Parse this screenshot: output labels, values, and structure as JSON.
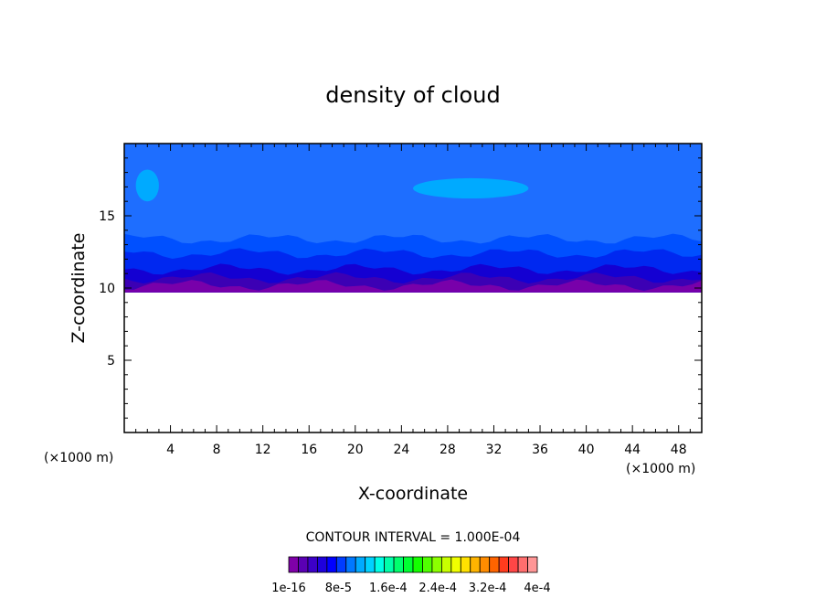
{
  "chart_data": {
    "type": "contour",
    "title": "density of cloud",
    "xlabel": "X-coordinate",
    "ylabel": "Z-coordinate",
    "x_unit_left": "(×1000 m)",
    "x_unit_right": "(×1000 m)",
    "xlim": [
      0,
      50
    ],
    "ylim": [
      0,
      20
    ],
    "x_ticks": [
      4,
      8,
      12,
      16,
      20,
      24,
      28,
      32,
      36,
      40,
      44,
      48
    ],
    "y_ticks": [
      5,
      10,
      15
    ],
    "contour_interval_text": "CONTOUR INTERVAL = 1.000E-04",
    "colorbar": {
      "colors": [
        "#7f00a8",
        "#5a00b4",
        "#3c00c8",
        "#1e00dc",
        "#0000ff",
        "#003cff",
        "#0078ff",
        "#00aaff",
        "#00d2ff",
        "#00ffe6",
        "#00ffaa",
        "#00ff6e",
        "#00ff32",
        "#14ff00",
        "#50ff00",
        "#8cff00",
        "#c8ff00",
        "#f0ff00",
        "#ffe100",
        "#ffb400",
        "#ff8c00",
        "#ff6400",
        "#ff3c1e",
        "#ff4646",
        "#ff6e6e",
        "#ff9696"
      ],
      "labels": [
        "1e-16",
        "8e-5",
        "1.6e-4",
        "2.4e-4",
        "3.2e-4",
        "4e-4"
      ]
    },
    "cloud_bands": [
      {
        "z_bottom": 9.7,
        "z_top": 20.0,
        "color": "#1e6eff",
        "level": "highest plotted level"
      },
      {
        "z_bottom": 9.7,
        "z_top": 13.4,
        "color": "#0050ff",
        "level": "mid"
      },
      {
        "z_bottom": 9.7,
        "z_top": 12.4,
        "color": "#0028f0",
        "level": "mid"
      },
      {
        "z_bottom": 9.7,
        "z_top": 11.3,
        "color": "#1400d2",
        "level": "low"
      },
      {
        "z_bottom": 9.7,
        "z_top": 10.7,
        "color": "#3c00b4",
        "level": "low"
      },
      {
        "z_bottom": 9.7,
        "z_top": 10.2,
        "color": "#7800aa",
        "level": "lowest"
      }
    ],
    "patches": [
      {
        "x_range": [
          25,
          35
        ],
        "z_range": [
          16.2,
          17.6
        ],
        "color": "#00aaff"
      },
      {
        "x_range": [
          1,
          3
        ],
        "z_range": [
          16.0,
          18.2
        ],
        "color": "#00aaff"
      }
    ]
  }
}
